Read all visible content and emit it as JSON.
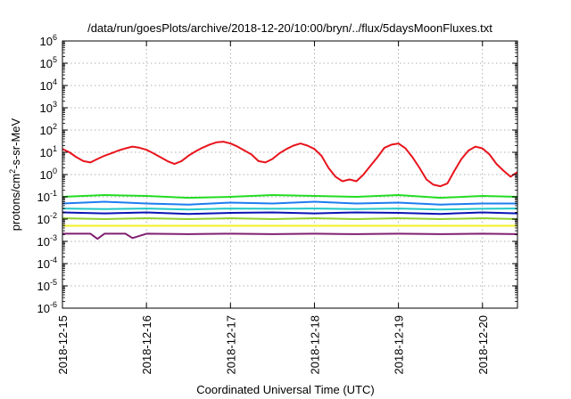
{
  "chart_data": {
    "type": "line",
    "title": "/data/run/goesPlots/archive/2018-12-20/10:00/bryn/../flux/5daysMoonFluxes.txt",
    "xlabel": "Coordinated Universal Time (UTC)",
    "ylabel": {
      "prefix": "protons/cm",
      "sup": "2",
      "suffix": "-s-sr-MeV"
    },
    "y_scale": "log",
    "ylim_exponent": [
      -6,
      6
    ],
    "y_tick_exponents": [
      6,
      5,
      4,
      3,
      2,
      1,
      0,
      -1,
      -2,
      -3,
      -4,
      -5,
      -6
    ],
    "y_tick_base": "10",
    "xlim": [
      "2018-12-15T00:00",
      "2018-12-20T10:00"
    ],
    "x_ticks": [
      "2018-12-15",
      "2018-12-16",
      "2018-12-17",
      "2018-12-18",
      "2018-12-19",
      "2018-12-20"
    ],
    "grid": true,
    "series": [
      {
        "color": "#e8141c",
        "x": [
          "2018-12-15T00:00",
          "2018-12-15T02:00",
          "2018-12-15T04:00",
          "2018-12-15T06:00",
          "2018-12-15T08:00",
          "2018-12-15T10:00",
          "2018-12-15T12:00",
          "2018-12-15T14:00",
          "2018-12-15T16:00",
          "2018-12-15T18:00",
          "2018-12-15T20:00",
          "2018-12-15T22:00",
          "2018-12-16T00:00",
          "2018-12-16T02:00",
          "2018-12-16T04:00",
          "2018-12-16T06:00",
          "2018-12-16T08:00",
          "2018-12-16T10:00",
          "2018-12-16T12:00",
          "2018-12-16T14:00",
          "2018-12-16T16:00",
          "2018-12-16T18:00",
          "2018-12-16T20:00",
          "2018-12-16T22:00",
          "2018-12-17T00:00",
          "2018-12-17T02:00",
          "2018-12-17T04:00",
          "2018-12-17T06:00",
          "2018-12-17T08:00",
          "2018-12-17T10:00",
          "2018-12-17T12:00",
          "2018-12-17T14:00",
          "2018-12-17T16:00",
          "2018-12-17T18:00",
          "2018-12-17T20:00",
          "2018-12-17T22:00",
          "2018-12-18T00:00",
          "2018-12-18T02:00",
          "2018-12-18T04:00",
          "2018-12-18T06:00",
          "2018-12-18T08:00",
          "2018-12-18T10:00",
          "2018-12-18T12:00",
          "2018-12-18T14:00",
          "2018-12-18T16:00",
          "2018-12-18T18:00",
          "2018-12-18T20:00",
          "2018-12-18T22:00",
          "2018-12-19T00:00",
          "2018-12-19T02:00",
          "2018-12-19T04:00",
          "2018-12-19T06:00",
          "2018-12-19T08:00",
          "2018-12-19T10:00",
          "2018-12-19T12:00",
          "2018-12-19T14:00",
          "2018-12-19T16:00",
          "2018-12-19T18:00",
          "2018-12-19T20:00",
          "2018-12-19T22:00",
          "2018-12-20T00:00",
          "2018-12-20T02:00",
          "2018-12-20T04:00",
          "2018-12-20T06:00",
          "2018-12-20T08:00",
          "2018-12-20T10:00"
        ],
        "y": [
          14,
          10,
          6,
          4,
          3.5,
          5,
          7,
          9,
          12,
          15,
          18,
          16,
          13,
          9,
          6,
          4,
          3,
          4,
          7,
          11,
          16,
          22,
          28,
          30,
          25,
          18,
          12,
          8,
          4,
          3.5,
          5,
          9,
          14,
          20,
          25,
          20,
          14,
          7,
          2,
          0.8,
          0.5,
          0.6,
          0.5,
          1,
          2.5,
          6,
          16,
          22,
          25,
          15,
          6,
          2,
          0.6,
          0.35,
          0.3,
          0.4,
          1.5,
          5,
          12,
          18,
          15,
          8,
          3,
          1.5,
          0.8,
          1.3
        ]
      },
      {
        "color": "#22dd22",
        "x": [
          "2018-12-15T00:00",
          "2018-12-15T12:00",
          "2018-12-16T00:00",
          "2018-12-16T12:00",
          "2018-12-17T00:00",
          "2018-12-17T12:00",
          "2018-12-18T00:00",
          "2018-12-18T12:00",
          "2018-12-19T00:00",
          "2018-12-19T12:00",
          "2018-12-20T00:00",
          "2018-12-20T10:00"
        ],
        "y": [
          0.1,
          0.12,
          0.11,
          0.09,
          0.1,
          0.12,
          0.11,
          0.1,
          0.12,
          0.09,
          0.11,
          0.1
        ]
      },
      {
        "color": "#1e7cf0",
        "x": [
          "2018-12-15T00:00",
          "2018-12-15T12:00",
          "2018-12-16T00:00",
          "2018-12-16T12:00",
          "2018-12-17T00:00",
          "2018-12-17T12:00",
          "2018-12-18T00:00",
          "2018-12-18T12:00",
          "2018-12-19T00:00",
          "2018-12-19T12:00",
          "2018-12-20T00:00",
          "2018-12-20T10:00"
        ],
        "y": [
          0.05,
          0.06,
          0.05,
          0.045,
          0.055,
          0.05,
          0.06,
          0.05,
          0.055,
          0.045,
          0.05,
          0.05
        ]
      },
      {
        "color": "#20c8c8",
        "x": [
          "2018-12-15T00:00",
          "2018-12-15T12:00",
          "2018-12-16T00:00",
          "2018-12-16T12:00",
          "2018-12-17T00:00",
          "2018-12-17T12:00",
          "2018-12-18T00:00",
          "2018-12-18T12:00",
          "2018-12-19T00:00",
          "2018-12-19T12:00",
          "2018-12-20T00:00",
          "2018-12-20T10:00"
        ],
        "y": [
          0.03,
          0.028,
          0.03,
          0.027,
          0.03,
          0.029,
          0.03,
          0.028,
          0.03,
          0.027,
          0.029,
          0.03
        ]
      },
      {
        "color": "#0a14b4",
        "x": [
          "2018-12-15T00:00",
          "2018-12-15T12:00",
          "2018-12-16T00:00",
          "2018-12-16T12:00",
          "2018-12-17T00:00",
          "2018-12-17T12:00",
          "2018-12-18T00:00",
          "2018-12-18T12:00",
          "2018-12-19T00:00",
          "2018-12-19T12:00",
          "2018-12-20T00:00",
          "2018-12-20T10:00"
        ],
        "y": [
          0.02,
          0.018,
          0.02,
          0.017,
          0.019,
          0.02,
          0.018,
          0.02,
          0.019,
          0.017,
          0.02,
          0.018
        ]
      },
      {
        "color": "#90d030",
        "x": [
          "2018-12-15T00:00",
          "2018-12-15T12:00",
          "2018-12-16T00:00",
          "2018-12-16T12:00",
          "2018-12-17T00:00",
          "2018-12-17T12:00",
          "2018-12-18T00:00",
          "2018-12-18T12:00",
          "2018-12-19T00:00",
          "2018-12-19T12:00",
          "2018-12-20T00:00",
          "2018-12-20T10:00"
        ],
        "y": [
          0.011,
          0.01,
          0.011,
          0.01,
          0.011,
          0.01,
          0.011,
          0.01,
          0.011,
          0.01,
          0.011,
          0.01
        ]
      },
      {
        "color": "#f0f020",
        "x": [
          "2018-12-15T00:00",
          "2018-12-15T12:00",
          "2018-12-16T00:00",
          "2018-12-16T12:00",
          "2018-12-17T00:00",
          "2018-12-17T12:00",
          "2018-12-18T00:00",
          "2018-12-18T12:00",
          "2018-12-19T00:00",
          "2018-12-19T12:00",
          "2018-12-20T00:00",
          "2018-12-20T10:00"
        ],
        "y": [
          0.005,
          0.005,
          0.005,
          0.005,
          0.005,
          0.005,
          0.005,
          0.005,
          0.005,
          0.005,
          0.005,
          0.005
        ]
      },
      {
        "color": "#802070",
        "x": [
          "2018-12-15T00:00",
          "2018-12-15T08:00",
          "2018-12-15T10:00",
          "2018-12-15T12:00",
          "2018-12-15T18:00",
          "2018-12-15T20:00",
          "2018-12-16T00:00",
          "2018-12-16T12:00",
          "2018-12-17T00:00",
          "2018-12-17T12:00",
          "2018-12-18T00:00",
          "2018-12-18T12:00",
          "2018-12-19T00:00",
          "2018-12-19T12:00",
          "2018-12-20T00:00",
          "2018-12-20T10:00"
        ],
        "y": [
          0.0022,
          0.0022,
          0.0013,
          0.0022,
          0.0022,
          0.0014,
          0.0022,
          0.0021,
          0.0022,
          0.0021,
          0.0022,
          0.0021,
          0.0022,
          0.0021,
          0.0022,
          0.0021
        ]
      }
    ]
  }
}
